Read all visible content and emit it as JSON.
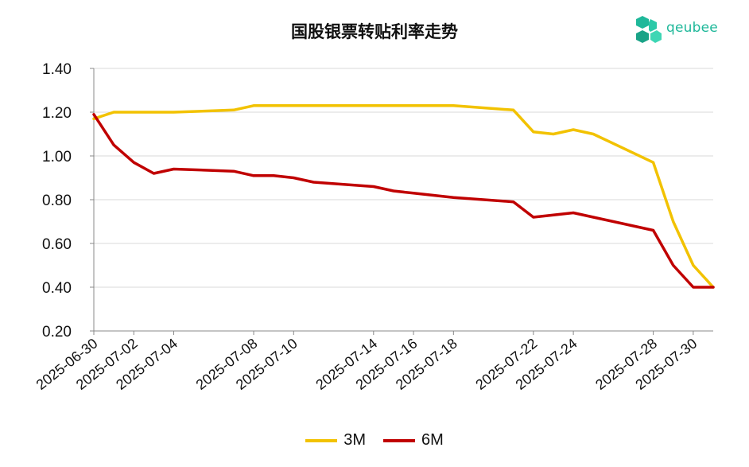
{
  "chart_data": {
    "type": "line",
    "title": "国股银票转贴利率走势",
    "xlabel": "",
    "ylabel": "",
    "ylim": [
      0.2,
      1.4
    ],
    "yticks": [
      "0.20",
      "0.40",
      "0.60",
      "0.80",
      "1.00",
      "1.20",
      "1.40"
    ],
    "xticks": [
      "2025-06-30",
      "2025-07-02",
      "2025-07-04",
      "2025-07-08",
      "2025-07-10",
      "2025-07-14",
      "2025-07-16",
      "2025-07-18",
      "2025-07-22",
      "2025-07-24",
      "2025-07-28",
      "2025-07-30"
    ],
    "x": [
      "2025-06-30",
      "2025-07-01",
      "2025-07-02",
      "2025-07-03",
      "2025-07-04",
      "2025-07-07",
      "2025-07-08",
      "2025-07-09",
      "2025-07-10",
      "2025-07-11",
      "2025-07-14",
      "2025-07-15",
      "2025-07-16",
      "2025-07-17",
      "2025-07-18",
      "2025-07-21",
      "2025-07-22",
      "2025-07-23",
      "2025-07-24",
      "2025-07-25",
      "2025-07-28",
      "2025-07-29",
      "2025-07-30",
      "2025-07-31"
    ],
    "series": [
      {
        "name": "3M",
        "color": "#f2c200",
        "values": [
          1.17,
          1.2,
          1.2,
          1.2,
          1.2,
          1.21,
          1.23,
          1.23,
          1.23,
          1.23,
          1.23,
          1.23,
          1.23,
          1.23,
          1.23,
          1.21,
          1.11,
          1.1,
          1.12,
          1.1,
          0.97,
          0.7,
          0.5,
          0.4
        ]
      },
      {
        "name": "6M",
        "color": "#c00000",
        "values": [
          1.19,
          1.05,
          0.97,
          0.92,
          0.94,
          0.93,
          0.91,
          0.91,
          0.9,
          0.88,
          0.86,
          0.84,
          0.83,
          0.82,
          0.81,
          0.79,
          0.72,
          0.73,
          0.74,
          0.72,
          0.66,
          0.5,
          0.4,
          0.4
        ]
      }
    ],
    "grid": true,
    "legend_position": "bottom"
  },
  "logo": {
    "text": "qeubee",
    "color": "#1fb89a"
  }
}
